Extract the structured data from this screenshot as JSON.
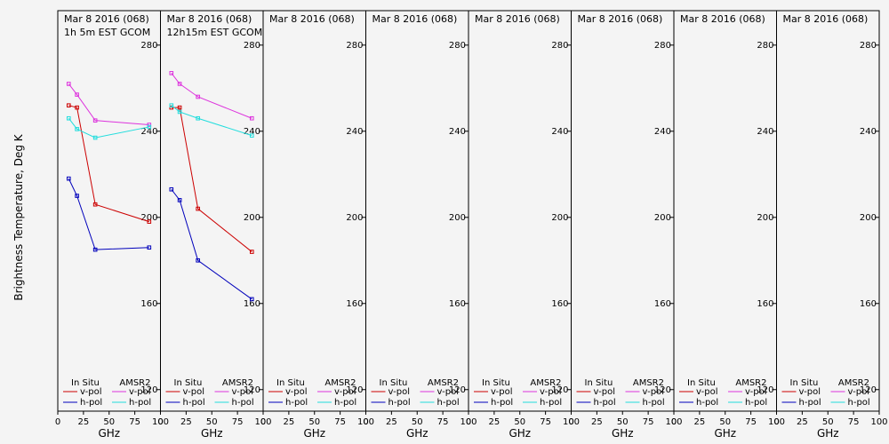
{
  "ylabel": "Brightness Temperature, Deg K",
  "xlabel": "GHz",
  "legend": {
    "in_situ": "In Situ",
    "amsr2": "AMSR2",
    "vpol": "v-pol",
    "hpol": "h-pol"
  },
  "colors": {
    "in_situ_v": "#cc0000",
    "in_situ_h": "#0000bb",
    "amsr2_v": "#dd33dd",
    "amsr2_h": "#22dddd"
  },
  "chart_data": {
    "type": "line",
    "ylim": [
      110,
      296
    ],
    "yticks": [
      120,
      160,
      200,
      240,
      280
    ],
    "xlim": [
      0,
      100
    ],
    "xticks": [
      0,
      25,
      50,
      75,
      100
    ],
    "panels": [
      {
        "title": "Mar 8 2016 (068)",
        "subtitle": "1h 5m EST GCOM",
        "series": [
          {
            "name": "In Situ v-pol",
            "key": "in_situ_v",
            "x": [
              10.65,
              18.7,
              36.5,
              89
            ],
            "y": [
              252,
              251,
              206,
              198
            ]
          },
          {
            "name": "In Situ h-pol",
            "key": "in_situ_h",
            "x": [
              10.65,
              18.7,
              36.5,
              89
            ],
            "y": [
              218,
              210,
              185,
              186
            ]
          },
          {
            "name": "AMSR2 v-pol",
            "key": "amsr2_v",
            "x": [
              10.65,
              18.7,
              36.5,
              89
            ],
            "y": [
              262,
              257,
              245,
              243
            ]
          },
          {
            "name": "AMSR2 h-pol",
            "key": "amsr2_h",
            "x": [
              10.65,
              18.7,
              36.5,
              89
            ],
            "y": [
              246,
              241,
              237,
              242
            ]
          }
        ]
      },
      {
        "title": "Mar 8 2016 (068)",
        "subtitle": "12h15m EST GCOM",
        "series": [
          {
            "name": "In Situ v-pol",
            "key": "in_situ_v",
            "x": [
              10.65,
              18.7,
              36.5,
              89
            ],
            "y": [
              251,
              251,
              204,
              184
            ]
          },
          {
            "name": "In Situ h-pol",
            "key": "in_situ_h",
            "x": [
              10.65,
              18.7,
              36.5,
              89
            ],
            "y": [
              213,
              208,
              180,
              162
            ]
          },
          {
            "name": "AMSR2 v-pol",
            "key": "amsr2_v",
            "x": [
              10.65,
              18.7,
              36.5,
              89
            ],
            "y": [
              267,
              262,
              256,
              246
            ]
          },
          {
            "name": "AMSR2 h-pol",
            "key": "amsr2_h",
            "x": [
              10.65,
              18.7,
              36.5,
              89
            ],
            "y": [
              252,
              249,
              246,
              238
            ]
          }
        ]
      },
      {
        "title": "Mar 8 2016 (068)",
        "subtitle": "",
        "series": []
      },
      {
        "title": "Mar 8 2016 (068)",
        "subtitle": "",
        "series": []
      },
      {
        "title": "Mar 8 2016 (068)",
        "subtitle": "",
        "series": []
      },
      {
        "title": "Mar 8 2016 (068)",
        "subtitle": "",
        "series": []
      },
      {
        "title": "Mar 8 2016 (068)",
        "subtitle": "",
        "series": []
      },
      {
        "title": "Mar 8 2016 (068)",
        "subtitle": "",
        "series": []
      }
    ]
  }
}
